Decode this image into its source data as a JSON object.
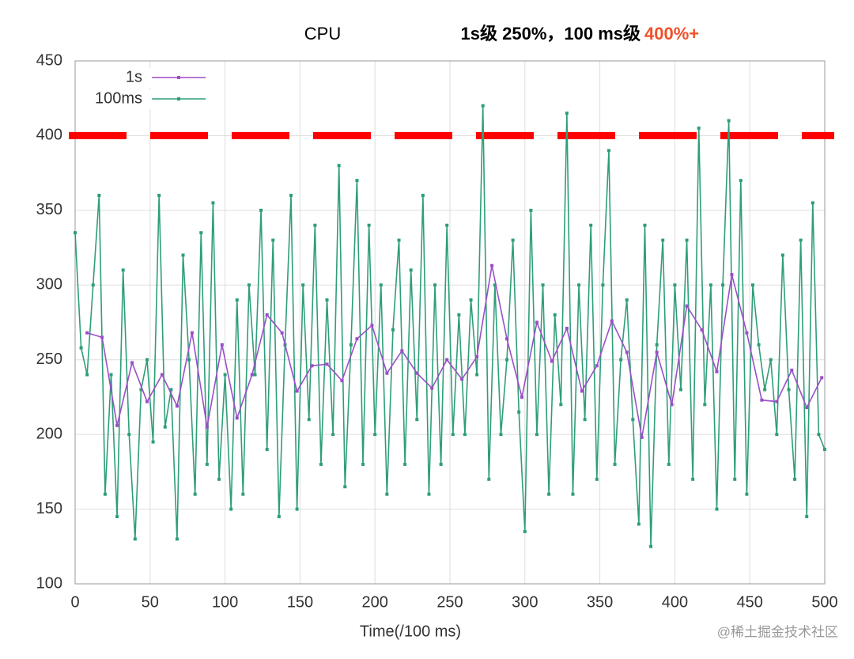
{
  "chart_data": {
    "type": "line",
    "title": "CPU",
    "subtitle": "1s级 250%，100 ms级",
    "subtitle_highlight": "400%+",
    "highlight_color": "#f0502a",
    "x_label": "Time(/100 ms)",
    "watermark": "@稀土掘金技术社区",
    "xlim": [
      0,
      500
    ],
    "xticks": [
      0,
      50,
      100,
      150,
      200,
      250,
      300,
      350,
      400,
      450,
      500
    ],
    "ylim": [
      100,
      450
    ],
    "yticks": [
      100,
      150,
      200,
      250,
      300,
      350,
      400,
      450
    ],
    "grid": true,
    "legend": "top-left",
    "threshold": {
      "value": 400,
      "color": "#ff0000"
    },
    "series": [
      {
        "name": "1s",
        "color": "#9b4fc7",
        "x": [
          8,
          18,
          28,
          38,
          48,
          58,
          68,
          78,
          88,
          98,
          108,
          118,
          128,
          138,
          148,
          158,
          168,
          178,
          188,
          198,
          208,
          218,
          228,
          238,
          248,
          258,
          268,
          278,
          288,
          298,
          308,
          318,
          328,
          338,
          348,
          358,
          368,
          378,
          388,
          398,
          408,
          418,
          428,
          438,
          448,
          458,
          468,
          478,
          488,
          498
        ],
        "values": [
          268,
          265,
          206,
          248,
          222,
          240,
          219,
          268,
          205,
          260,
          211,
          240,
          280,
          268,
          229,
          246,
          247,
          236,
          264,
          273,
          241,
          256,
          241,
          231,
          250,
          237,
          252,
          313,
          264,
          225,
          275,
          249,
          271,
          229,
          246,
          276,
          255,
          198,
          255,
          220,
          286,
          270,
          242,
          307,
          268,
          223,
          222,
          243,
          218,
          238
        ]
      },
      {
        "name": "100ms",
        "color": "#2e9e7a",
        "x": [
          0,
          4,
          8,
          12,
          16,
          20,
          24,
          28,
          32,
          36,
          40,
          44,
          48,
          52,
          56,
          60,
          64,
          68,
          72,
          76,
          80,
          84,
          88,
          92,
          96,
          100,
          104,
          108,
          112,
          116,
          120,
          124,
          128,
          132,
          136,
          140,
          144,
          148,
          152,
          156,
          160,
          164,
          168,
          172,
          176,
          180,
          184,
          188,
          192,
          196,
          200,
          204,
          208,
          212,
          216,
          220,
          224,
          228,
          232,
          236,
          240,
          244,
          248,
          252,
          256,
          260,
          264,
          268,
          272,
          276,
          280,
          284,
          288,
          292,
          296,
          300,
          304,
          308,
          312,
          316,
          320,
          324,
          328,
          332,
          336,
          340,
          344,
          348,
          352,
          356,
          360,
          364,
          368,
          372,
          376,
          380,
          384,
          388,
          392,
          396,
          400,
          404,
          408,
          412,
          416,
          420,
          424,
          428,
          432,
          436,
          440,
          444,
          448,
          452,
          456,
          460,
          464,
          468,
          472,
          476,
          480,
          484,
          488,
          492,
          496,
          500
        ],
        "values": [
          335,
          258,
          240,
          300,
          360,
          160,
          240,
          145,
          310,
          200,
          130,
          230,
          250,
          195,
          360,
          205,
          230,
          130,
          320,
          250,
          160,
          335,
          180,
          355,
          170,
          240,
          150,
          290,
          160,
          300,
          240,
          350,
          190,
          330,
          145,
          260,
          360,
          150,
          300,
          210,
          340,
          180,
          290,
          200,
          380,
          165,
          260,
          370,
          180,
          340,
          200,
          300,
          160,
          270,
          330,
          180,
          310,
          210,
          360,
          160,
          300,
          180,
          340,
          200,
          280,
          200,
          290,
          240,
          420,
          170,
          300,
          200,
          250,
          330,
          215,
          135,
          350,
          200,
          300,
          160,
          280,
          220,
          415,
          160,
          300,
          210,
          340,
          170,
          300,
          390,
          180,
          250,
          290,
          210,
          140,
          340,
          125,
          260,
          330,
          180,
          300,
          230,
          330,
          170,
          405,
          220,
          300,
          150,
          300,
          410,
          170,
          370,
          160,
          300,
          260,
          230,
          250,
          200,
          320,
          230,
          170,
          330,
          145,
          355,
          200,
          190
        ]
      }
    ]
  }
}
